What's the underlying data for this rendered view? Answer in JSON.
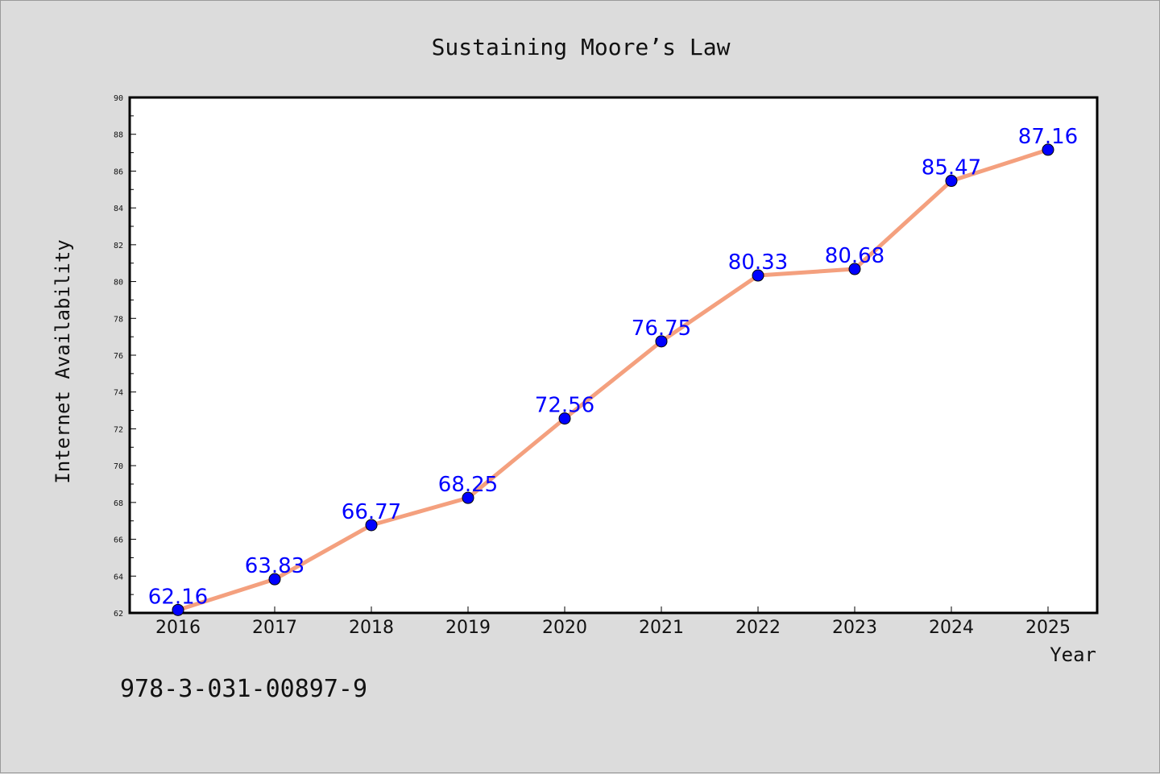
{
  "chart_data": {
    "type": "line",
    "title": "Sustaining Moore’s Law",
    "xlabel": "Year",
    "ylabel": "Internet Availability",
    "categories": [
      "2016",
      "2017",
      "2018",
      "2019",
      "2020",
      "2021",
      "2022",
      "2023",
      "2024",
      "2025"
    ],
    "values": [
      62.16,
      63.83,
      66.77,
      68.25,
      72.56,
      76.75,
      80.33,
      80.68,
      85.47,
      87.16
    ],
    "data_labels": [
      "62.16",
      "63.83",
      "66.77",
      "68.25",
      "72.56",
      "76.75",
      "80.33",
      "80.68",
      "85.47",
      "87.16"
    ],
    "ylim": [
      62,
      90
    ],
    "yticks": [
      62,
      64,
      66,
      68,
      70,
      72,
      74,
      76,
      78,
      80,
      82,
      84,
      86,
      88,
      90
    ],
    "grid": false,
    "line_color": "#f4a07e",
    "marker_color": "#0000ff",
    "label_color": "#0000ff",
    "background_color": "#dcdcdc",
    "plot_background_color": "#ffffff"
  },
  "footer": {
    "isbn": "978-3-031-00897-9"
  }
}
